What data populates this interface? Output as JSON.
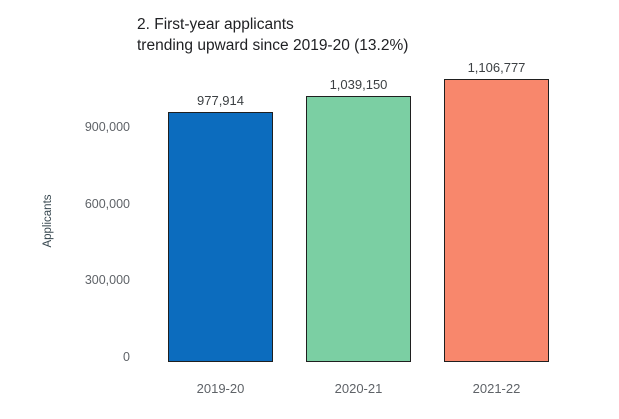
{
  "title": "2. First-year applicants\ntrending upward since 2019-20 (13.2%)",
  "chart_data": {
    "type": "bar",
    "title": "2. First-year applicants trending upward since 2019-20 (13.2%)",
    "categories": [
      "2019-20",
      "2020-21",
      "2021-22"
    ],
    "values": [
      977914,
      1039150,
      1106777
    ],
    "value_labels": [
      "977,914",
      "1,039,150",
      "1,106,777"
    ],
    "bar_colors": [
      "#0c6cbe",
      "#7bcfa3",
      "#f8876c"
    ],
    "bar_border_color": "#1f1f1f",
    "xlabel": "",
    "ylabel": "Applicants",
    "ylim": [
      0,
      1146000
    ],
    "yticks": [
      {
        "value": 0,
        "label": "0"
      },
      {
        "value": 300000,
        "label": "300,000"
      },
      {
        "value": 600000,
        "label": "600,000"
      },
      {
        "value": 900000,
        "label": "900,000"
      }
    ],
    "grid": false,
    "legend": false
  }
}
